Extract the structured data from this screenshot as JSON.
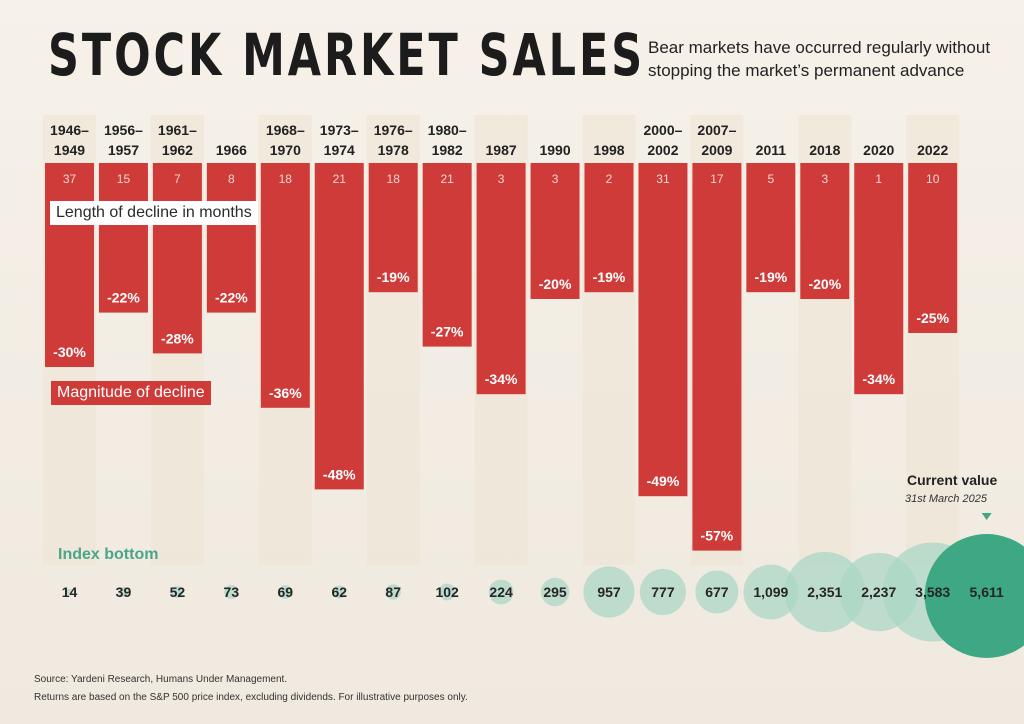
{
  "header": {
    "title": "STOCK MARKET SALES",
    "subtitle": "Bear markets have occurred regularly without stopping the market’s permanent advance"
  },
  "annotations": {
    "length_label": "Length of decline in months",
    "magnitude_label": "Magnitude of decline",
    "index_label": "Index bottom",
    "current_label": "Current value",
    "current_date": "31st March 2025"
  },
  "footer": {
    "source": "Source: Yardeni Research, Humans Under Management.",
    "note": "Returns are based on the S&P 500 price index, excluding dividends. For illustrative purposes only."
  },
  "colors": {
    "bar": "#cf3b39",
    "bubble": "#a8d5c4",
    "bubble_current": "#3ea884",
    "column_shade": "#ece3d4",
    "accent_text": "#4aa58b"
  },
  "chart_data": {
    "type": "bar",
    "title": "STOCK MARKET SALES",
    "categories": [
      "1946–\n1949",
      "1956–\n1957",
      "1961–\n1962",
      "1966",
      "1968–\n1970",
      "1973–\n1974",
      "1976–\n1978",
      "1980–\n1982",
      "1987",
      "1990",
      "1998",
      "2000–\n2002",
      "2007–\n2009",
      "2011",
      "2018",
      "2020",
      "2022"
    ],
    "series": [
      {
        "values": [
          -30,
          -22,
          -28,
          -22,
          -36,
          -48,
          -19,
          -27,
          -34,
          -20,
          -19,
          -49,
          -57,
          -19,
          -20,
          -34,
          -25
        ]
      },
      {
        "values": [
          37,
          15,
          7,
          8,
          18,
          21,
          18,
          21,
          3,
          3,
          2,
          31,
          17,
          5,
          3,
          1,
          10
        ]
      }
    ],
    "index_labels": [
      "14",
      "39",
      "52",
      "73",
      "69",
      "62",
      "87",
      "102",
      "224",
      "295",
      "957",
      "777",
      "677",
      "1,099",
      "2,351",
      "2,237",
      "3,583",
      "5,611"
    ],
    "index_values": [
      14,
      39,
      52,
      73,
      69,
      62,
      87,
      102,
      224,
      295,
      957,
      777,
      677,
      1099,
      2351,
      2237,
      3583,
      5611
    ],
    "ylim": [
      -60,
      0
    ]
  }
}
